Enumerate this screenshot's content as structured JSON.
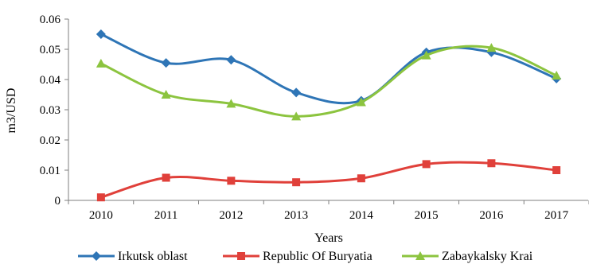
{
  "chart_data": {
    "type": "line",
    "title": "",
    "xlabel": "Years",
    "ylabel": "m3/USD",
    "categories": [
      "2010",
      "2011",
      "2012",
      "2013",
      "2014",
      "2015",
      "2016",
      "2017"
    ],
    "ylim": [
      0,
      0.06
    ],
    "yticks": [
      "0",
      "0.01",
      "0.02",
      "0.03",
      "0.04",
      "0.05",
      "0.06"
    ],
    "grid": false,
    "legend_position": "bottom",
    "series": [
      {
        "name": "Irkutsk oblast",
        "color": "#2e75b6",
        "marker": "diamond",
        "values": [
          0.055,
          0.0455,
          0.0465,
          0.0357,
          0.033,
          0.049,
          0.049,
          0.0403
        ]
      },
      {
        "name": "Republic Of Buryatia",
        "color": "#e0403a",
        "marker": "square",
        "values": [
          0.001,
          0.0075,
          0.0065,
          0.006,
          0.0073,
          0.012,
          0.0123,
          0.01
        ]
      },
      {
        "name": "Zabaykalsky Krai",
        "color": "#8cc43f",
        "marker": "triangle",
        "values": [
          0.0453,
          0.035,
          0.032,
          0.0278,
          0.0325,
          0.048,
          0.0505,
          0.0413
        ]
      }
    ]
  }
}
